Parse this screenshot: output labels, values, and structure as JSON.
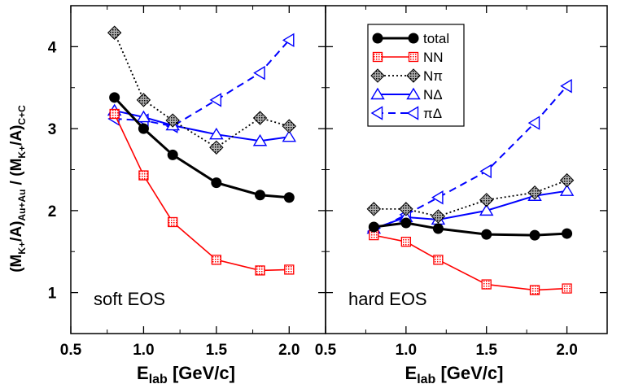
{
  "chart_data": {
    "type": "line",
    "panels": [
      {
        "label": "soft EOS",
        "x": [
          0.8,
          1.0,
          1.2,
          1.5,
          1.8,
          2.0
        ],
        "series": [
          {
            "name": "total",
            "values": [
              3.38,
              3.0,
              2.68,
              2.34,
              2.19,
              2.16
            ]
          },
          {
            "name": "NN",
            "values": [
              3.18,
              2.43,
              1.86,
              1.4,
              1.27,
              1.28
            ]
          },
          {
            "name": "Nπ",
            "values": [
              4.17,
              3.35,
              3.1,
              2.77,
              3.13,
              3.03
            ]
          },
          {
            "name": "NΔ",
            "values": [
              3.22,
              3.14,
              3.04,
              2.93,
              2.85,
              2.9
            ]
          },
          {
            "name": "πΔ",
            "values": [
              3.12,
              3.1,
              3.03,
              3.35,
              3.68,
              4.08
            ]
          }
        ]
      },
      {
        "label": "hard EOS",
        "x": [
          0.8,
          1.0,
          1.2,
          1.5,
          1.8,
          2.0
        ],
        "series": [
          {
            "name": "total",
            "values": [
              1.8,
              1.85,
              1.78,
              1.71,
              1.7,
              1.72
            ]
          },
          {
            "name": "NN",
            "values": [
              1.7,
              1.62,
              1.4,
              1.1,
              1.03,
              1.05
            ]
          },
          {
            "name": "Nπ",
            "values": [
              2.02,
              2.02,
              1.93,
              2.13,
              2.22,
              2.37
            ]
          },
          {
            "name": "NΔ",
            "values": [
              1.78,
              1.92,
              1.89,
              2.0,
              2.18,
              2.24
            ]
          },
          {
            "name": "πΔ",
            "values": [
              1.75,
              1.95,
              2.16,
              2.48,
              3.07,
              3.52
            ]
          }
        ]
      }
    ],
    "x_ticks": [
      "0.5",
      "1.0",
      "1.5",
      "2.0"
    ],
    "y_ticks": [
      "1",
      "2",
      "3",
      "4"
    ],
    "xlim": [
      0.5,
      2.25
    ],
    "ylim": [
      0.5,
      4.5
    ],
    "xlabel_main": "E",
    "xlabel_sub": "lab",
    "xlabel_unit": " [GeV/c]",
    "ylabel": "(M_{K+}/A)_{Au+Au} / (M_{K+}/A)_{C+C}",
    "legend_position": "top-right of right panel",
    "colors": {
      "total": "#000000",
      "NN": "#ff0000",
      "Nπ": "#000000",
      "NΔ": "#0000ff",
      "πΔ": "#0000ff"
    }
  }
}
